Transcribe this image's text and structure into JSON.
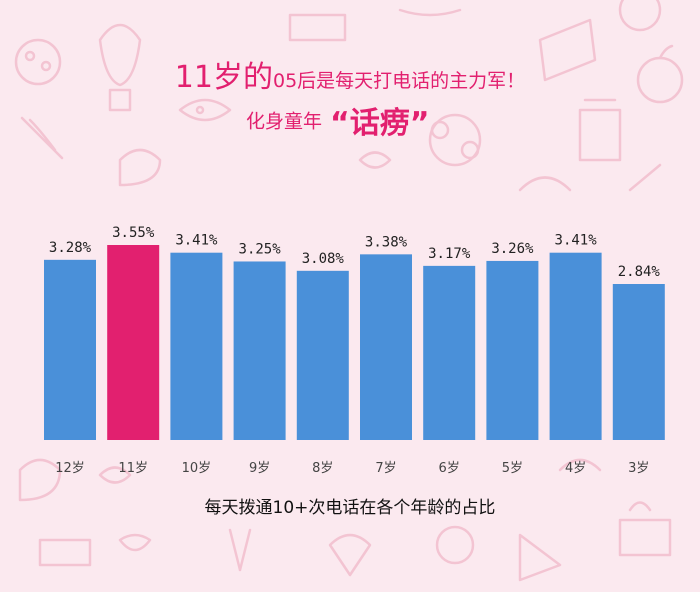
{
  "headline": {
    "age_part": "11岁的",
    "cohort_part": "05后",
    "rest_part": "是每天打电话的主力军！",
    "sub_lead": "化身童年",
    "sub_quote": "“话痨”"
  },
  "chart_data": {
    "type": "bar",
    "categories": [
      "12岁",
      "11岁",
      "10岁",
      "9岁",
      "8岁",
      "7岁",
      "6岁",
      "5岁",
      "4岁",
      "3岁"
    ],
    "values": [
      3.28,
      3.55,
      3.41,
      3.25,
      3.08,
      3.38,
      3.17,
      3.26,
      3.41,
      2.84
    ],
    "data_labels": [
      "3.28%",
      "3.55%",
      "3.41%",
      "3.25%",
      "3.08%",
      "3.38%",
      "3.17%",
      "3.26%",
      "3.41%",
      "2.84%"
    ],
    "highlight_index": 1,
    "colors": {
      "default": "#4a90d9",
      "highlight": "#e2206f"
    },
    "grid": false,
    "xlabel": "每天拨通10+次电话在各个年龄的占比"
  }
}
